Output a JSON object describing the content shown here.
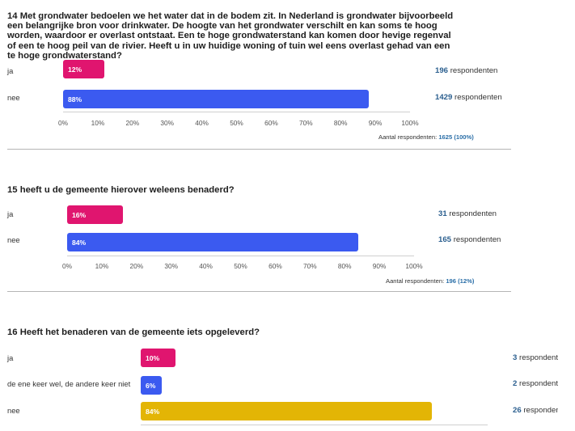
{
  "chart_data": [
    {
      "type": "bar",
      "orientation": "horizontal",
      "title": "14 Met grondwater bedoelen we het water dat in de bodem zit. In Nederland is grondwater bijvoorbeeld een belangrijke bron voor drinkwater. De hoogte van het grondwater verschilt en kan soms te hoog worden, waardoor er overlast ontstaat. Een te hoge grondwaterstand kan komen door hevige regenval of een te hoog peil van de rivier. Heeft u in uw huidige woning of tuin wel eens overlast gehad van een te hoge grondwaterstand?",
      "categories": [
        "ja",
        "nee"
      ],
      "values": [
        12,
        88
      ],
      "value_labels": [
        "12%",
        "88%"
      ],
      "respondents": [
        "196",
        "1429"
      ],
      "respondents_suffix": "respondenten",
      "colors": [
        "#e0156f",
        "#3b5af0"
      ],
      "xlim": [
        0,
        100
      ],
      "ticks": [
        "0%",
        "10%",
        "20%",
        "30%",
        "40%",
        "50%",
        "60%",
        "70%",
        "80%",
        "90%",
        "100%"
      ],
      "total_label": "Aantal respondenten:",
      "total_value": "1625 (100%)"
    },
    {
      "type": "bar",
      "orientation": "horizontal",
      "title": "15 heeft u de gemeente hierover weleens benaderd?",
      "categories": [
        "ja",
        "nee"
      ],
      "values": [
        16,
        84
      ],
      "value_labels": [
        "16%",
        "84%"
      ],
      "respondents": [
        "31",
        "165"
      ],
      "respondents_suffix": "respondenten",
      "colors": [
        "#e0156f",
        "#3b5af0"
      ],
      "xlim": [
        0,
        100
      ],
      "ticks": [
        "0%",
        "10%",
        "20%",
        "30%",
        "40%",
        "50%",
        "60%",
        "70%",
        "80%",
        "90%",
        "100%"
      ],
      "total_label": "Aantal respondenten:",
      "total_value": "196 (12%)"
    },
    {
      "type": "bar",
      "orientation": "horizontal",
      "title": "16 Heeft het benaderen van de gemeente iets opgeleverd?",
      "categories": [
        "ja",
        "de ene keer wel, de andere keer niet",
        "nee"
      ],
      "values": [
        10,
        6,
        84
      ],
      "value_labels": [
        "10%",
        "6%",
        "84%"
      ],
      "respondents": [
        "3",
        "2",
        "26"
      ],
      "respondents_suffix": "respondenten",
      "colors": [
        "#e0156f",
        "#3b5af0",
        "#e3b505"
      ],
      "xlim": [
        0,
        100
      ]
    }
  ]
}
